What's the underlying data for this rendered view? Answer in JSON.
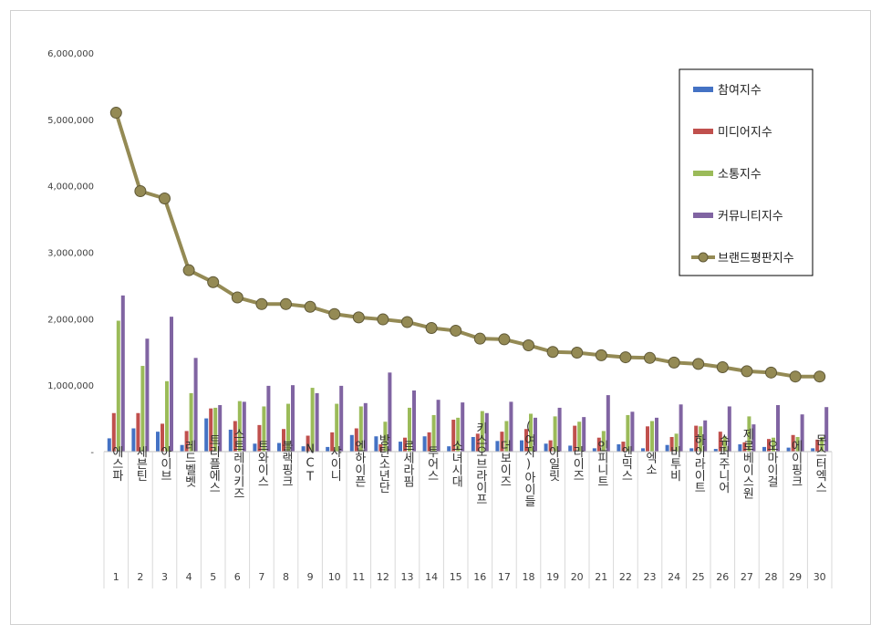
{
  "chart_data": {
    "type": "bar",
    "title": "",
    "xlabel": "",
    "ylabel": "",
    "ylim": [
      0,
      6000000
    ],
    "y_ticks": [
      "-",
      "1,000,000",
      "2,000,000",
      "3,000,000",
      "4,000,000",
      "5,000,000",
      "6,000,000"
    ],
    "grid": false,
    "legend_position": "top-right",
    "categories": [
      "에스파",
      "세븐틴",
      "아이브",
      "레드벨벳",
      "트리플에스",
      "스트레이키즈",
      "트와이스",
      "블랙핑크",
      "NCT",
      "샤이니",
      "엔하이픈",
      "방탄소년단",
      "르세라핌",
      "투어스",
      "소녀시대",
      "키스오브라이프",
      "더보이즈",
      "(여자)아이들",
      "아일릿",
      "라이즈",
      "인피니트",
      "엔믹스",
      "엑소",
      "비투비",
      "하이라이트",
      "슈퍼주니어",
      "제로베이스원",
      "오마이걸",
      "에이핑크",
      "몬스터엑스"
    ],
    "ranks": [
      "1",
      "2",
      "3",
      "4",
      "5",
      "6",
      "7",
      "8",
      "9",
      "10",
      "11",
      "12",
      "13",
      "14",
      "15",
      "16",
      "17",
      "18",
      "19",
      "20",
      "21",
      "22",
      "23",
      "24",
      "25",
      "26",
      "27",
      "28",
      "29",
      "30"
    ],
    "series": [
      {
        "name": "참여지수",
        "type": "bar",
        "color": "#4472c4",
        "values": [
          200000,
          350000,
          300000,
          100000,
          500000,
          330000,
          120000,
          130000,
          80000,
          70000,
          250000,
          230000,
          150000,
          230000,
          80000,
          220000,
          160000,
          170000,
          120000,
          90000,
          50000,
          110000,
          50000,
          100000,
          50000,
          40000,
          110000,
          70000,
          60000,
          50000
        ]
      },
      {
        "name": "미디어지수",
        "type": "bar",
        "color": "#c0504d",
        "values": [
          580000,
          580000,
          420000,
          310000,
          650000,
          460000,
          400000,
          340000,
          240000,
          290000,
          350000,
          110000,
          210000,
          290000,
          480000,
          270000,
          300000,
          340000,
          170000,
          390000,
          210000,
          150000,
          380000,
          220000,
          390000,
          300000,
          140000,
          190000,
          250000,
          180000
        ]
      },
      {
        "name": "소통지수",
        "type": "bar",
        "color": "#9bbb59",
        "values": [
          1970000,
          1290000,
          1060000,
          880000,
          660000,
          760000,
          680000,
          720000,
          960000,
          720000,
          680000,
          450000,
          660000,
          550000,
          510000,
          610000,
          460000,
          570000,
          530000,
          450000,
          310000,
          550000,
          460000,
          270000,
          380000,
          230000,
          530000,
          210000,
          220000,
          220000
        ]
      },
      {
        "name": "커뮤니티지수",
        "type": "bar",
        "color": "#8064a2",
        "values": [
          2350000,
          1700000,
          2030000,
          1410000,
          700000,
          750000,
          990000,
          1000000,
          880000,
          990000,
          730000,
          1190000,
          920000,
          780000,
          740000,
          580000,
          750000,
          510000,
          660000,
          520000,
          850000,
          600000,
          510000,
          710000,
          470000,
          680000,
          410000,
          700000,
          560000,
          670000
        ]
      },
      {
        "name": "브랜드평판지수",
        "type": "line",
        "color": "#948a54",
        "values": [
          5100000,
          3920000,
          3810000,
          2730000,
          2550000,
          2320000,
          2220000,
          2220000,
          2180000,
          2070000,
          2020000,
          1990000,
          1950000,
          1860000,
          1820000,
          1700000,
          1690000,
          1600000,
          1500000,
          1490000,
          1450000,
          1420000,
          1410000,
          1340000,
          1320000,
          1270000,
          1210000,
          1190000,
          1130000,
          1130000
        ]
      }
    ]
  }
}
